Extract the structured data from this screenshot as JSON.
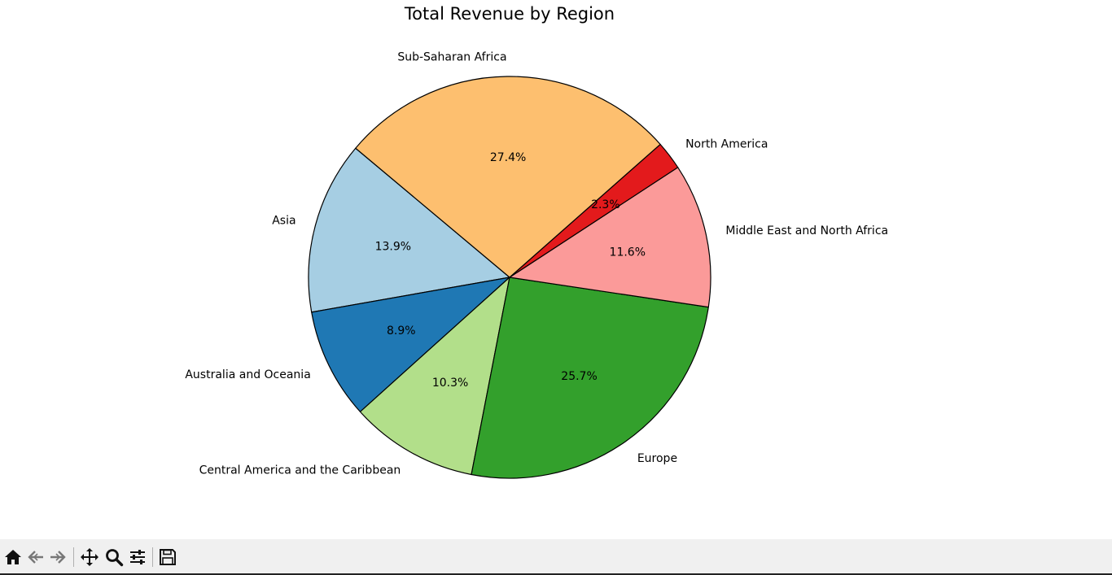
{
  "chart_data": {
    "type": "pie",
    "title": "Total Revenue by Region",
    "start_angle_deg": 140,
    "direction": "counterclockwise",
    "slices": [
      {
        "label": "Asia",
        "value": 13.9,
        "pct_label": "13.9%",
        "color": "#a6cee3"
      },
      {
        "label": "Australia and Oceania",
        "value": 8.9,
        "pct_label": "8.9%",
        "color": "#1f78b4"
      },
      {
        "label": "Central America and the Caribbean",
        "value": 10.3,
        "pct_label": "10.3%",
        "color": "#b2df8a"
      },
      {
        "label": "Europe",
        "value": 25.7,
        "pct_label": "25.7%",
        "color": "#33a02c"
      },
      {
        "label": "Middle East and North Africa",
        "value": 11.6,
        "pct_label": "11.6%",
        "color": "#fb9a99"
      },
      {
        "label": "North America",
        "value": 2.3,
        "pct_label": "2.3%",
        "color": "#e31a1c"
      },
      {
        "label": "Sub-Saharan Africa",
        "value": 27.4,
        "pct_label": "27.4%",
        "color": "#fdbf6f"
      }
    ]
  },
  "toolbar": {
    "buttons": [
      {
        "name": "home",
        "icon": "home-icon"
      },
      {
        "name": "back",
        "icon": "back-arrow-icon"
      },
      {
        "name": "forward",
        "icon": "forward-arrow-icon"
      },
      {
        "name": "pan",
        "icon": "move-icon"
      },
      {
        "name": "zoom",
        "icon": "zoom-icon"
      },
      {
        "name": "configure-subplots",
        "icon": "sliders-icon"
      },
      {
        "name": "save",
        "icon": "save-icon"
      }
    ]
  }
}
